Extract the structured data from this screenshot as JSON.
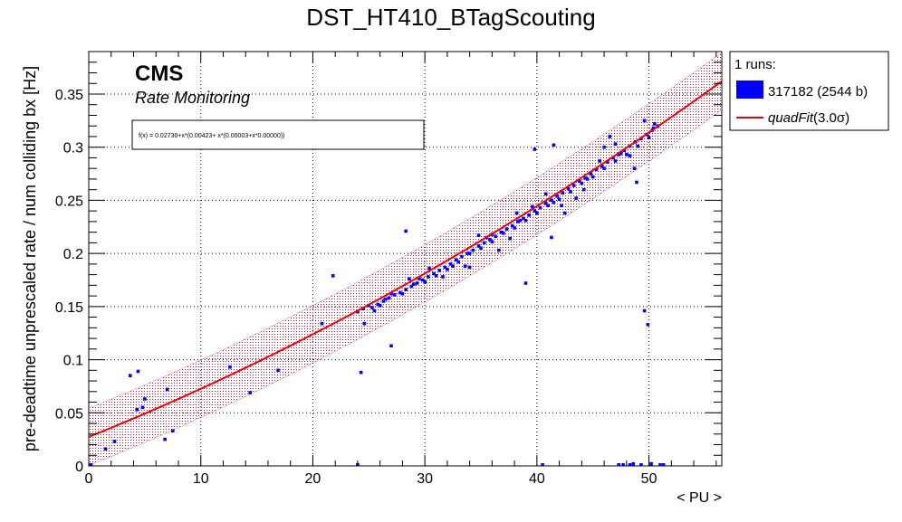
{
  "chart_data": {
    "type": "scatter",
    "title": "DST_HT410_BTagScouting",
    "xlabel": "< PU >",
    "ylabel": "pre-deadtime unprescaled rate / num colliding bx [Hz]",
    "xlim": [
      0,
      56.5
    ],
    "ylim": [
      0,
      0.39
    ],
    "xticks": [
      0,
      10,
      20,
      30,
      40,
      50
    ],
    "xtick_labels": [
      "0",
      "10",
      "20",
      "30",
      "40",
      "50"
    ],
    "yticks": [
      0,
      0.05,
      0.1,
      0.15,
      0.2,
      0.25,
      0.3,
      0.35
    ],
    "ytick_labels": [
      "0",
      "0.05",
      "0.1",
      "0.15",
      "0.2",
      "0.25",
      "0.3",
      "0.35"
    ],
    "grid": true,
    "legend_position": "right-top",
    "cms_label": "CMS",
    "cms_sublabel": "Rate Monitoring",
    "fit_formula": "f(x) = 0.02730+x*(0.00423+ x*(0.00003+x*0.00000))",
    "fit": {
      "type": "quadratic",
      "coefficients": [
        0.0273,
        0.00423,
        3e-05
      ],
      "x_range": [
        0,
        56.5
      ],
      "band_sigma": 3.0,
      "band_halfwidth": 0.027,
      "color": "#e8000b"
    },
    "legend": {
      "header": "1 runs:",
      "entries": [
        {
          "label": "317182 (2544 b)",
          "kind": "box",
          "color": "#0000ff"
        },
        {
          "label_main": "quadFit",
          "label_tail": "(3.0σ)",
          "kind": "line",
          "color": "#e8000b"
        }
      ]
    },
    "series": [
      {
        "name": "317182 (2544 b)",
        "color": "#0000ff",
        "points": [
          [
            0.2,
            0.001
          ],
          [
            1.5,
            0.016
          ],
          [
            2.3,
            0.023
          ],
          [
            3.7,
            0.085
          ],
          [
            4.4,
            0.089
          ],
          [
            4.3,
            0.053
          ],
          [
            4.8,
            0.055
          ],
          [
            5.0,
            0.063
          ],
          [
            6.8,
            0.025
          ],
          [
            7.0,
            0.072
          ],
          [
            7.5,
            0.033
          ],
          [
            12.6,
            0.093
          ],
          [
            14.4,
            0.069
          ],
          [
            16.9,
            0.09
          ],
          [
            20.8,
            0.134
          ],
          [
            21.8,
            0.179
          ],
          [
            24.0,
            0.001
          ],
          [
            24.3,
            0.088
          ],
          [
            24.6,
            0.134
          ],
          [
            27.0,
            0.113
          ],
          [
            28.3,
            0.221
          ],
          [
            34.0,
            0.187
          ],
          [
            36.0,
            0.218
          ],
          [
            39.0,
            0.172
          ],
          [
            39.8,
            0.298
          ],
          [
            40.5,
            0.001
          ],
          [
            41.3,
            0.215
          ],
          [
            41.5,
            0.302
          ],
          [
            42.5,
            0.238
          ],
          [
            46.5,
            0.31
          ],
          [
            47.3,
            0.001
          ],
          [
            47.7,
            0.001
          ],
          [
            48.3,
            0.001
          ],
          [
            48.6,
            0.002
          ],
          [
            48.9,
            0.267
          ],
          [
            49.3,
            0.001
          ],
          [
            49.6,
            0.146
          ],
          [
            49.9,
            0.133
          ],
          [
            50.2,
            0.002
          ],
          [
            51.0,
            0.001
          ],
          [
            51.3,
            0.001
          ],
          [
            24.0,
            0.145
          ],
          [
            24.5,
            0.148
          ],
          [
            25.0,
            0.151
          ],
          [
            25.3,
            0.149
          ],
          [
            25.8,
            0.152
          ],
          [
            26.3,
            0.155
          ],
          [
            26.8,
            0.158
          ],
          [
            27.3,
            0.161
          ],
          [
            27.8,
            0.163
          ],
          [
            28.3,
            0.166
          ],
          [
            28.8,
            0.169
          ],
          [
            29.3,
            0.172
          ],
          [
            29.8,
            0.175
          ],
          [
            30.3,
            0.178
          ],
          [
            30.8,
            0.181
          ],
          [
            31.3,
            0.184
          ],
          [
            31.8,
            0.187
          ],
          [
            32.3,
            0.19
          ],
          [
            32.8,
            0.194
          ],
          [
            33.3,
            0.197
          ],
          [
            33.8,
            0.2
          ],
          [
            34.3,
            0.203
          ],
          [
            34.8,
            0.207
          ],
          [
            35.3,
            0.21
          ],
          [
            35.8,
            0.213
          ],
          [
            36.3,
            0.216
          ],
          [
            36.8,
            0.22
          ],
          [
            37.3,
            0.223
          ],
          [
            37.8,
            0.226
          ],
          [
            38.3,
            0.23
          ],
          [
            38.8,
            0.233
          ],
          [
            39.3,
            0.236
          ],
          [
            39.8,
            0.24
          ],
          [
            40.3,
            0.243
          ],
          [
            40.8,
            0.247
          ],
          [
            41.3,
            0.25
          ],
          [
            41.8,
            0.254
          ],
          [
            42.3,
            0.257
          ],
          [
            42.8,
            0.261
          ],
          [
            43.3,
            0.264
          ],
          [
            43.8,
            0.268
          ],
          [
            44.3,
            0.271
          ],
          [
            44.8,
            0.275
          ],
          [
            45.3,
            0.279
          ],
          [
            45.8,
            0.282
          ],
          [
            46.3,
            0.286
          ],
          [
            46.8,
            0.29
          ],
          [
            47.3,
            0.293
          ],
          [
            47.8,
            0.297
          ],
          [
            48.3,
            0.301
          ],
          [
            48.8,
            0.305
          ],
          [
            49.3,
            0.308
          ],
          [
            49.8,
            0.312
          ],
          [
            50.3,
            0.316
          ],
          [
            50.8,
            0.32
          ],
          [
            25.5,
            0.146
          ],
          [
            26.0,
            0.151
          ],
          [
            27.0,
            0.162
          ],
          [
            28.0,
            0.162
          ],
          [
            29.0,
            0.171
          ],
          [
            30.0,
            0.173
          ],
          [
            31.0,
            0.179
          ],
          [
            32.0,
            0.185
          ],
          [
            33.0,
            0.192
          ],
          [
            34.0,
            0.2
          ],
          [
            35.0,
            0.205
          ],
          [
            36.0,
            0.211
          ],
          [
            37.0,
            0.219
          ],
          [
            38.0,
            0.224
          ],
          [
            39.0,
            0.231
          ],
          [
            40.0,
            0.238
          ],
          [
            41.0,
            0.245
          ],
          [
            42.0,
            0.251
          ],
          [
            43.0,
            0.258
          ],
          [
            44.0,
            0.266
          ],
          [
            45.0,
            0.272
          ],
          [
            46.0,
            0.28
          ],
          [
            47.0,
            0.287
          ],
          [
            48.0,
            0.293
          ],
          [
            49.0,
            0.301
          ],
          [
            50.0,
            0.309
          ],
          [
            26.5,
            0.157
          ],
          [
            29.5,
            0.176
          ],
          [
            32.5,
            0.188
          ],
          [
            35.5,
            0.215
          ],
          [
            38.5,
            0.231
          ],
          [
            41.5,
            0.248
          ],
          [
            44.5,
            0.27
          ],
          [
            47.5,
            0.294
          ],
          [
            50.5,
            0.322
          ],
          [
            46.0,
            0.3
          ],
          [
            47.0,
            0.303
          ],
          [
            48.3,
            0.292
          ],
          [
            48.7,
            0.28
          ],
          [
            49.6,
            0.325
          ],
          [
            50.4,
            0.318
          ],
          [
            43.5,
            0.252
          ],
          [
            44.2,
            0.26
          ],
          [
            45.6,
            0.287
          ],
          [
            37.6,
            0.214
          ],
          [
            38.2,
            0.238
          ],
          [
            42.2,
            0.245
          ],
          [
            36.6,
            0.203
          ],
          [
            33.6,
            0.188
          ],
          [
            31.6,
            0.178
          ],
          [
            30.4,
            0.186
          ],
          [
            28.6,
            0.176
          ],
          [
            34.8,
            0.217
          ],
          [
            40.8,
            0.256
          ],
          [
            39.6,
            0.244
          ]
        ]
      }
    ]
  }
}
